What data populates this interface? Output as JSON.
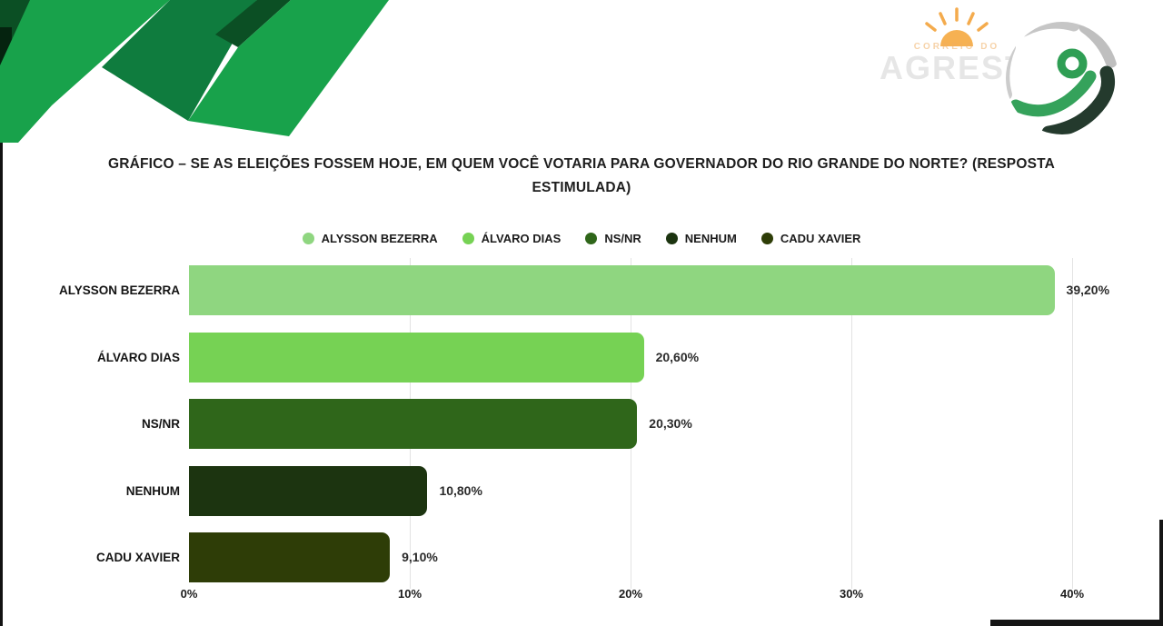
{
  "watermark": {
    "line1": "CORREIO DO",
    "line2": "AGRESTE"
  },
  "branding": {
    "globe_logo_name": "globe-swoosh-logo",
    "sun_color": "#f3a33a",
    "deco_greens": [
      "#18a24b",
      "#0f7c3e",
      "#0b4f24",
      "#05230f"
    ]
  },
  "chart_data": {
    "type": "bar",
    "orientation": "horizontal",
    "title": "GRÁFICO – SE AS ELEIÇÕES FOSSEM HOJE, EM QUEM VOCÊ VOTARIA PARA GOVERNADOR DO RIO GRANDE DO NORTE? (RESPOSTA ESTIMULADA)",
    "categories": [
      "ALYSSON BEZERRA",
      "ÁLVARO DIAS",
      "NS/NR",
      "NENHUM",
      "CADU XAVIER"
    ],
    "values": [
      39.2,
      20.6,
      20.3,
      10.8,
      9.1
    ],
    "value_labels": [
      "39,20%",
      "20,60%",
      "20,30%",
      "10,80%",
      "9,10%"
    ],
    "bar_colors": [
      "#8fd680",
      "#76d254",
      "#2f661a",
      "#1c3410",
      "#2e3d07"
    ],
    "legend": [
      {
        "label": "ALYSSON BEZERRA",
        "color": "#8fd680"
      },
      {
        "label": "ÁLVARO DIAS",
        "color": "#76d254"
      },
      {
        "label": "NS/NR",
        "color": "#2f661a"
      },
      {
        "label": "NENHUM",
        "color": "#1c3410"
      },
      {
        "label": "CADU XAVIER",
        "color": "#2e3d07"
      }
    ],
    "x_ticks": [
      {
        "label": "0%",
        "value": 0
      },
      {
        "label": "10%",
        "value": 10
      },
      {
        "label": "20%",
        "value": 20
      },
      {
        "label": "30%",
        "value": 30
      },
      {
        "label": "40%",
        "value": 40
      }
    ],
    "xlim": [
      0,
      40
    ],
    "grid": true,
    "legend_position": "top",
    "xlabel": "",
    "ylabel": ""
  }
}
